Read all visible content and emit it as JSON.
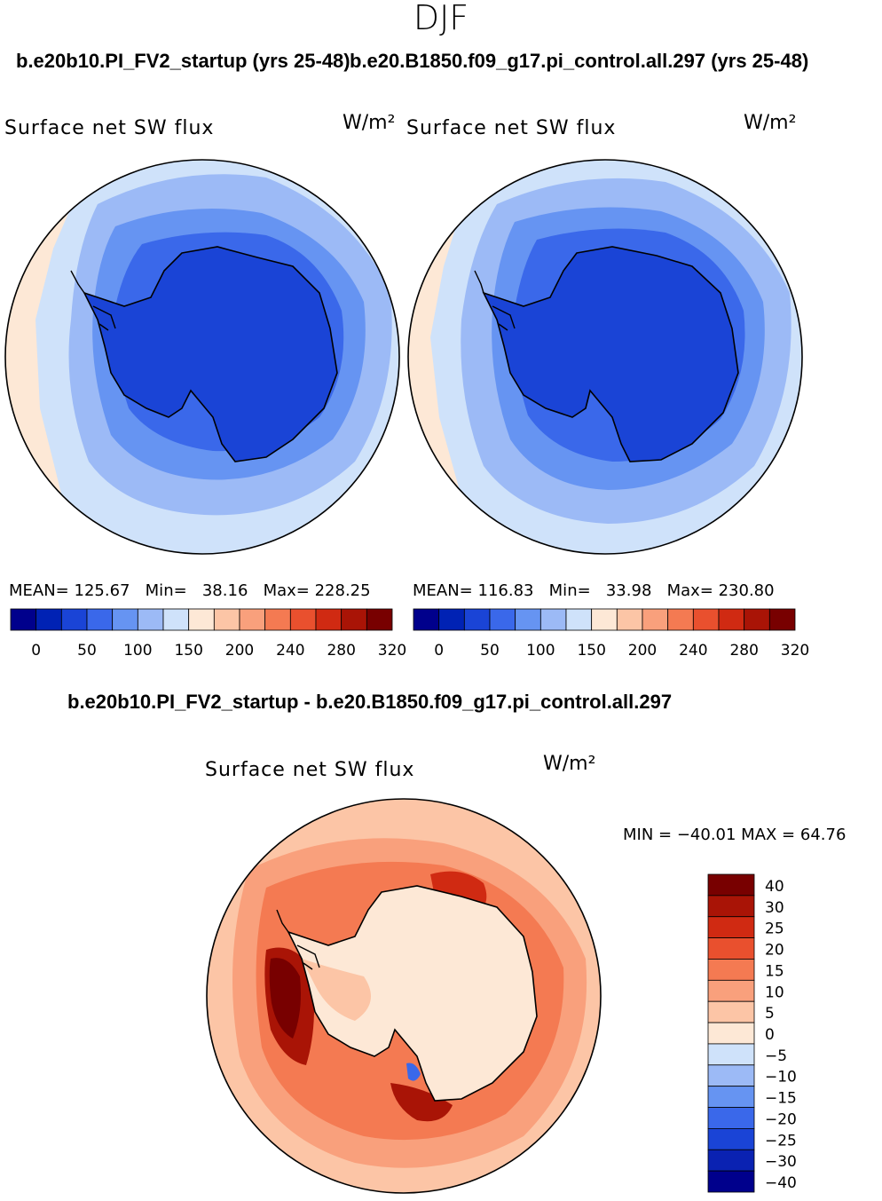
{
  "season": "DJF",
  "case_label": "b.e20b10.PI_FV2_startup (yrs 25-48)",
  "control_label": "b.e20.B1850.f09_g17.pi_control.all.297 (yrs 25-48)",
  "diff_label": "b.e20b10.PI_FV2_startup - b.e20.B1850.f09_g17.pi_control.all.297",
  "colors": {
    "abs_levels": [
      "#00008c",
      "#0022b4",
      "#1a44d6",
      "#3a68ea",
      "#6694f2",
      "#9cbaf6",
      "#cfe2fa",
      "#fde8d6",
      "#fcc5a6",
      "#f9a07c",
      "#f47a52",
      "#e9502e",
      "#d02a12",
      "#a91406",
      "#780000"
    ],
    "diff_levels": [
      "#00008c",
      "#0a22b2",
      "#1a44d6",
      "#3a68ea",
      "#6694f2",
      "#9cbaf6",
      "#cfe2fa",
      "#fde8d6",
      "#fcc5a6",
      "#f9a07c",
      "#f47a52",
      "#e9502e",
      "#d02a12",
      "#a91406",
      "#780000"
    ]
  },
  "chart_data": [
    {
      "type": "heatmap",
      "projection": "south-polar-stereographic",
      "title": "Surface net SW flux",
      "units": "W/m²",
      "run": "b.e20b10.PI_FV2_startup (yrs 25-48)",
      "mean_label": "MEAN=",
      "mean": "125.67",
      "min_label": "Min=",
      "min": "38.16",
      "max_label": "Max=",
      "max": "228.25",
      "colorbar_ticks": [
        "0",
        "50",
        "100",
        "150",
        "200",
        "240",
        "280",
        "320"
      ],
      "legend": "bottom"
    },
    {
      "type": "heatmap",
      "projection": "south-polar-stereographic",
      "title": "Surface net SW flux",
      "units": "W/m²",
      "run": "b.e20.B1850.f09_g17.pi_control.all.297 (yrs 25-48)",
      "mean_label": "MEAN=",
      "mean": "116.83",
      "min_label": "Min=",
      "min": "33.98",
      "max_label": "Max=",
      "max": "230.80",
      "colorbar_ticks": [
        "0",
        "50",
        "100",
        "150",
        "200",
        "240",
        "280",
        "320"
      ],
      "legend": "bottom"
    },
    {
      "type": "heatmap",
      "projection": "south-polar-stereographic",
      "title": "Surface net SW flux",
      "units": "W/m²",
      "run": "b.e20b10.PI_FV2_startup - b.e20.B1850.f09_g17.pi_control.all.297",
      "minmax": "MIN = −40.01  MAX =   64.76",
      "min": -40.01,
      "max": 64.76,
      "colorbar_ticks": [
        "40",
        "30",
        "25",
        "20",
        "15",
        "10",
        "5",
        "0",
        "−5",
        "−10",
        "−15",
        "−20",
        "−25",
        "−30",
        "−40"
      ],
      "legend": "right"
    }
  ]
}
